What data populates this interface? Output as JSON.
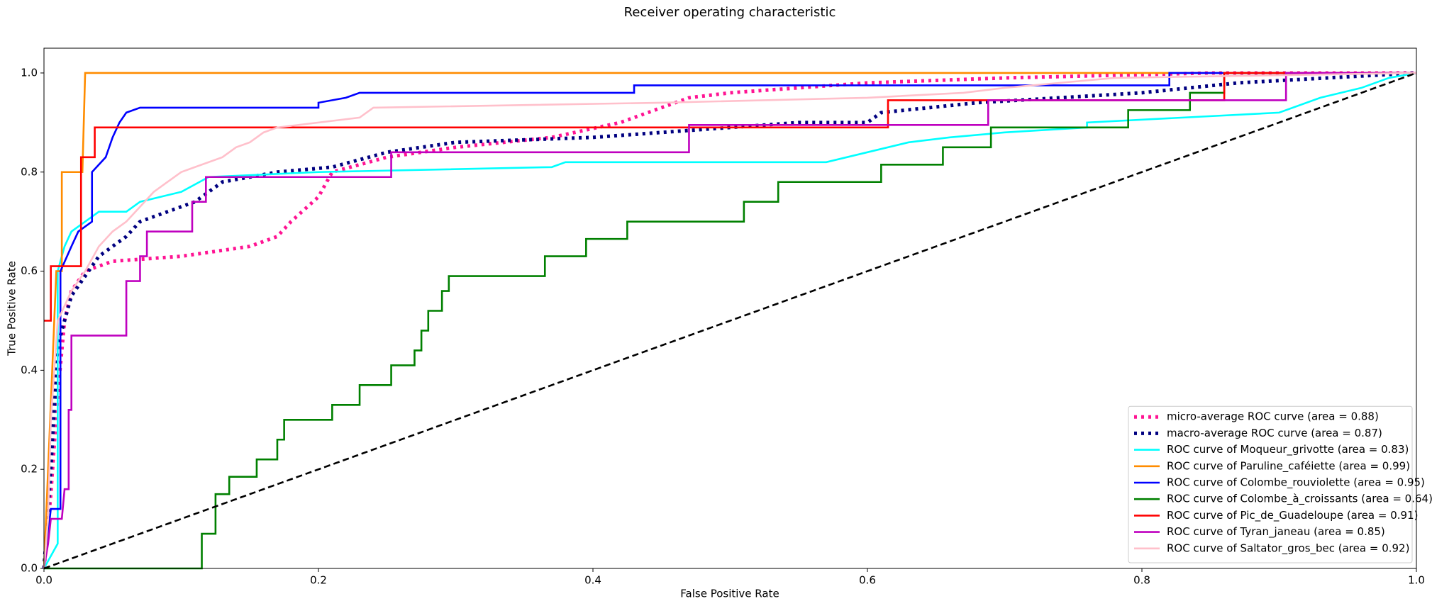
{
  "chart_data": {
    "type": "line",
    "title": "Receiver operating characteristic",
    "xlabel": "False Positive Rate",
    "ylabel": "True Positive Rate",
    "xlim": [
      0,
      1
    ],
    "ylim": [
      0,
      1.05
    ],
    "xticks": [
      {
        "value": 0,
        "label": "0.0"
      },
      0.2,
      0.4,
      0.6,
      0.8,
      {
        "value": 1,
        "label": "1.0"
      }
    ],
    "yticks": [
      {
        "value": 0,
        "label": "0.0"
      },
      0.2,
      0.4,
      0.6,
      0.8,
      {
        "value": 1,
        "label": "1.0"
      }
    ],
    "legend": "lower right",
    "grid": false,
    "reference_line": {
      "x": [
        0,
        1
      ],
      "values": [
        0,
        1
      ],
      "color": "black",
      "linestyle": "dashed"
    },
    "series": [
      {
        "name": "micro-average ROC curve (area = 0.88)",
        "color": "deeppink",
        "linestyle": "dotted",
        "x": [
          0,
          0.005,
          0.01,
          0.015,
          0.02,
          0.03,
          0.05,
          0.1,
          0.15,
          0.17,
          0.18,
          0.2,
          0.21,
          0.25,
          0.3,
          0.37,
          0.42,
          0.47,
          0.5,
          0.55,
          0.6,
          0.7,
          0.85,
          1
        ],
        "values": [
          0,
          0.15,
          0.35,
          0.5,
          0.56,
          0.6,
          0.62,
          0.63,
          0.65,
          0.67,
          0.7,
          0.75,
          0.8,
          0.83,
          0.85,
          0.87,
          0.9,
          0.95,
          0.96,
          0.97,
          0.98,
          0.99,
          1,
          1
        ]
      },
      {
        "name": "macro-average ROC curve (area = 0.87)",
        "color": "navy",
        "linestyle": "dotted",
        "x": [
          0,
          0.005,
          0.01,
          0.02,
          0.04,
          0.06,
          0.07,
          0.09,
          0.11,
          0.13,
          0.17,
          0.21,
          0.25,
          0.3,
          0.4,
          0.5,
          0.55,
          0.6,
          0.61,
          0.68,
          0.8,
          0.87,
          1
        ],
        "values": [
          0,
          0.2,
          0.45,
          0.55,
          0.63,
          0.67,
          0.7,
          0.72,
          0.74,
          0.78,
          0.8,
          0.81,
          0.84,
          0.86,
          0.87,
          0.89,
          0.9,
          0.9,
          0.92,
          0.94,
          0.96,
          0.98,
          1
        ]
      },
      {
        "name": "ROC curve of Moqueur_grivotte (area = 0.83)",
        "color": "aqua",
        "linestyle": "solid",
        "x": [
          0,
          0.01,
          0.01,
          0.015,
          0.02,
          0.03,
          0.04,
          0.06,
          0.07,
          0.1,
          0.12,
          0.2,
          0.37,
          0.38,
          0.57,
          0.6,
          0.63,
          0.66,
          0.7,
          0.76,
          0.76,
          0.9,
          0.93,
          0.96,
          0.98,
          1
        ],
        "values": [
          0,
          0.05,
          0.6,
          0.65,
          0.68,
          0.7,
          0.72,
          0.72,
          0.74,
          0.76,
          0.79,
          0.8,
          0.81,
          0.82,
          0.82,
          0.84,
          0.86,
          0.87,
          0.88,
          0.89,
          0.9,
          0.92,
          0.95,
          0.97,
          0.99,
          1
        ]
      },
      {
        "name": "ROC curve of Paruline_caféiette (area = 0.99)",
        "color": "darkorange",
        "linestyle": "solid",
        "x": [
          0,
          0.003,
          0.006,
          0.009,
          0.013,
          0.013,
          0.028,
          0.03,
          0.78,
          1
        ],
        "values": [
          0,
          0.2,
          0.4,
          0.6,
          0.6,
          0.8,
          0.8,
          1,
          1,
          1
        ]
      },
      {
        "name": "ROC curve of Colombe_rouviolette (area = 0.95)",
        "color": "blue",
        "linestyle": "solid",
        "x": [
          0,
          0.005,
          0.012,
          0.012,
          0.02,
          0.025,
          0.035,
          0.035,
          0.045,
          0.05,
          0.055,
          0.06,
          0.07,
          0.2,
          0.2,
          0.22,
          0.23,
          0.43,
          0.43,
          0.82,
          0.82,
          0.82,
          1
        ],
        "values": [
          0,
          0.12,
          0.12,
          0.6,
          0.65,
          0.68,
          0.7,
          0.8,
          0.83,
          0.87,
          0.9,
          0.92,
          0.93,
          0.93,
          0.94,
          0.95,
          0.96,
          0.96,
          0.975,
          0.975,
          0.99,
          1,
          1
        ]
      },
      {
        "name": "ROC curve of Colombe_à_croissants (area = 0.64)",
        "color": "green",
        "linestyle": "solid",
        "x": [
          0,
          0.115,
          0.115,
          0.125,
          0.125,
          0.135,
          0.135,
          0.155,
          0.155,
          0.17,
          0.17,
          0.175,
          0.175,
          0.21,
          0.21,
          0.23,
          0.23,
          0.253,
          0.253,
          0.27,
          0.27,
          0.275,
          0.275,
          0.28,
          0.28,
          0.29,
          0.29,
          0.295,
          0.295,
          0.365,
          0.365,
          0.395,
          0.395,
          0.425,
          0.425,
          0.51,
          0.51,
          0.535,
          0.535,
          0.61,
          0.61,
          0.655,
          0.655,
          0.69,
          0.69,
          0.79,
          0.79,
          0.835,
          0.835,
          0.86,
          0.86,
          1
        ],
        "values": [
          0,
          0,
          0.07,
          0.07,
          0.15,
          0.15,
          0.185,
          0.185,
          0.22,
          0.22,
          0.26,
          0.26,
          0.3,
          0.3,
          0.33,
          0.33,
          0.37,
          0.37,
          0.41,
          0.41,
          0.44,
          0.44,
          0.48,
          0.48,
          0.52,
          0.52,
          0.56,
          0.56,
          0.59,
          0.59,
          0.63,
          0.63,
          0.665,
          0.665,
          0.7,
          0.7,
          0.74,
          0.74,
          0.78,
          0.78,
          0.815,
          0.815,
          0.85,
          0.85,
          0.89,
          0.89,
          0.925,
          0.925,
          0.96,
          0.96,
          1,
          1
        ]
      },
      {
        "name": "ROC curve of Pic_de_Guadeloupe (area = 0.91)",
        "color": "red",
        "linestyle": "solid",
        "x": [
          0,
          0.005,
          0.005,
          0.027,
          0.027,
          0.037,
          0.037,
          0.615,
          0.615,
          0.86,
          0.86,
          1
        ],
        "values": [
          0.5,
          0.5,
          0.61,
          0.61,
          0.83,
          0.83,
          0.89,
          0.89,
          0.945,
          0.945,
          1,
          1
        ]
      },
      {
        "name": "ROC curve of Tyran_janeau (area = 0.85)",
        "color": "m",
        "linestyle": "solid",
        "x": [
          0,
          0.003,
          0.005,
          0.013,
          0.015,
          0.018,
          0.018,
          0.02,
          0.02,
          0.06,
          0.06,
          0.07,
          0.07,
          0.075,
          0.075,
          0.108,
          0.108,
          0.118,
          0.118,
          0.253,
          0.253,
          0.47,
          0.47,
          0.688,
          0.688,
          0.905,
          0.905,
          1
        ],
        "values": [
          0,
          0.05,
          0.1,
          0.1,
          0.16,
          0.16,
          0.32,
          0.32,
          0.47,
          0.47,
          0.58,
          0.58,
          0.63,
          0.63,
          0.68,
          0.68,
          0.74,
          0.74,
          0.79,
          0.79,
          0.84,
          0.84,
          0.895,
          0.895,
          0.945,
          0.945,
          1,
          1
        ]
      },
      {
        "name": "ROC curve of Saltator_gros_bec (area = 0.92)",
        "color": "pink",
        "linestyle": "solid",
        "x": [
          0,
          0.003,
          0.005,
          0.01,
          0.02,
          0.03,
          0.04,
          0.05,
          0.06,
          0.07,
          0.08,
          0.09,
          0.1,
          0.11,
          0.13,
          0.14,
          0.15,
          0.16,
          0.17,
          0.23,
          0.24,
          0.45,
          0.6,
          0.67,
          0.7,
          0.78,
          1
        ],
        "values": [
          0,
          0.1,
          0.3,
          0.5,
          0.56,
          0.6,
          0.65,
          0.68,
          0.7,
          0.73,
          0.76,
          0.78,
          0.8,
          0.81,
          0.83,
          0.85,
          0.86,
          0.88,
          0.89,
          0.91,
          0.93,
          0.94,
          0.95,
          0.96,
          0.97,
          0.99,
          1
        ]
      }
    ]
  }
}
